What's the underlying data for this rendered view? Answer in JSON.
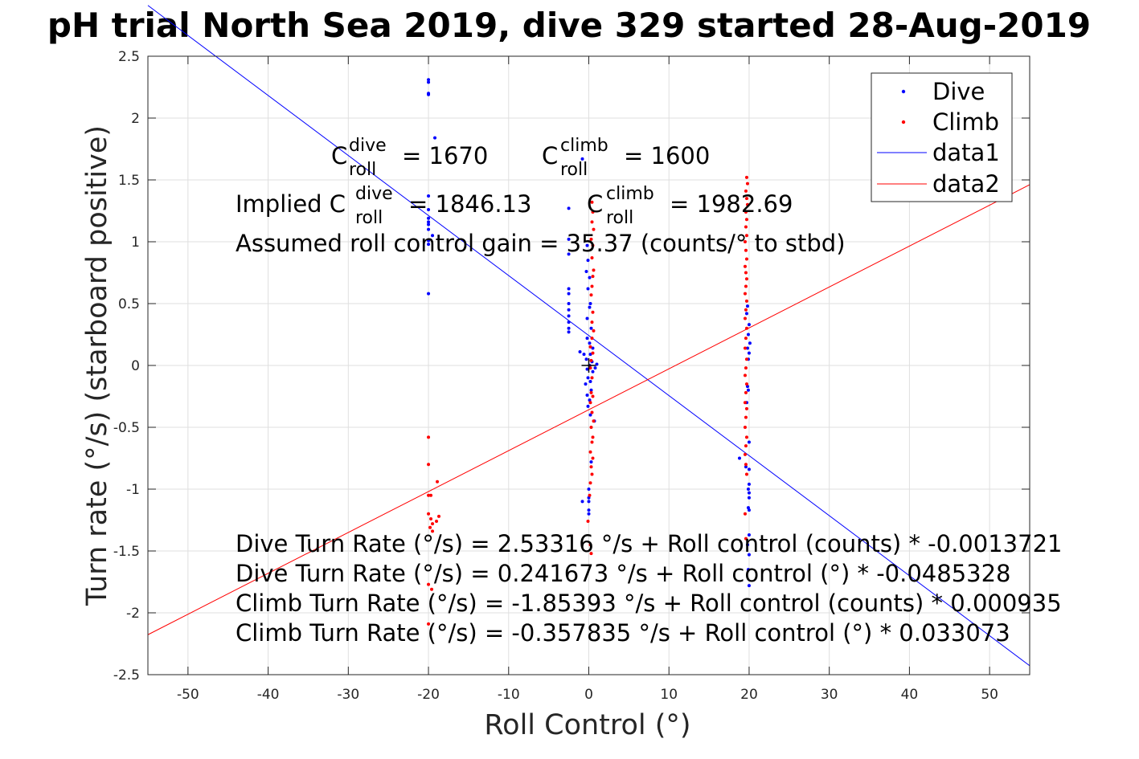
{
  "chart_data": {
    "type": "scatter",
    "title": "pH trial North Sea 2019, dive 329 started 28-Aug-2019",
    "xlabel": "Roll Control (°)",
    "ylabel": "Turn rate (°/s) (starboard positive)",
    "xlim": [
      -55,
      55
    ],
    "ylim": [
      -2.5,
      2.5
    ],
    "xticks": [
      -50,
      -40,
      -30,
      -20,
      -10,
      0,
      10,
      20,
      30,
      40,
      50
    ],
    "yticks": [
      -2.5,
      -2,
      -1.5,
      -1,
      -0.5,
      0,
      0.5,
      1,
      1.5,
      2,
      2.5
    ],
    "grid": true,
    "legend_position": "top-right",
    "series": [
      {
        "name": "Dive",
        "kind": "points",
        "color": "#0000ff",
        "points": [
          [
            -20,
            2.31
          ],
          [
            -20,
            2.29
          ],
          [
            -20,
            2.2
          ],
          [
            -20,
            2.19
          ],
          [
            -19.2,
            1.84
          ],
          [
            -20,
            1.37
          ],
          [
            -20,
            1.26
          ],
          [
            -20,
            1.19
          ],
          [
            -20,
            1.16
          ],
          [
            -20,
            1.14
          ],
          [
            -20,
            1.1
          ],
          [
            -19.5,
            1.05
          ],
          [
            -20,
            1.01
          ],
          [
            -20,
            0.98
          ],
          [
            -20,
            0.58
          ],
          [
            -0.8,
            1.67
          ],
          [
            -2.5,
            1.27
          ],
          [
            -2.5,
            1.02
          ],
          [
            -2.5,
            0.9
          ],
          [
            -2.5,
            0.62
          ],
          [
            -2.5,
            0.58
          ],
          [
            -2.5,
            0.5
          ],
          [
            -2.5,
            0.45
          ],
          [
            -2.5,
            0.4
          ],
          [
            -2.5,
            0.35
          ],
          [
            -2.5,
            0.3
          ],
          [
            -2.5,
            0.27
          ],
          [
            -0.2,
            0.97
          ],
          [
            -0.1,
            0.85
          ],
          [
            -0.3,
            0.76
          ],
          [
            0.1,
            0.71
          ],
          [
            -0.1,
            0.62
          ],
          [
            0.2,
            0.5
          ],
          [
            0.1,
            0.47
          ],
          [
            -0.2,
            0.38
          ],
          [
            0.3,
            0.3
          ],
          [
            -0.2,
            0.22
          ],
          [
            0.1,
            0.18
          ],
          [
            0.5,
            0.14
          ],
          [
            0.2,
            0.09
          ],
          [
            -0.3,
            0.05
          ],
          [
            0.4,
            0.03
          ],
          [
            0.1,
            0
          ],
          [
            -0.2,
            -0.03
          ],
          [
            0.5,
            -0.05
          ],
          [
            -0.1,
            -0.1
          ],
          [
            0.2,
            -0.13
          ],
          [
            -1.1,
            0.11
          ],
          [
            -0.6,
            0.09
          ],
          [
            -0.4,
            -0.15
          ],
          [
            0.3,
            -0.2
          ],
          [
            -0.2,
            -0.24
          ],
          [
            0.1,
            -0.28
          ],
          [
            -0.1,
            -0.33
          ],
          [
            0.2,
            -0.4
          ],
          [
            0.7,
            -0.45
          ],
          [
            1,
            0.01
          ],
          [
            0.8,
            -0.02
          ],
          [
            -0.8,
            -1.1
          ],
          [
            0,
            -1.1
          ],
          [
            0,
            -1.17
          ],
          [
            0,
            -1.2
          ],
          [
            0,
            -1.07
          ],
          [
            0,
            -1.0
          ],
          [
            0.3,
            -0.78
          ],
          [
            19.8,
            0.48
          ],
          [
            19.7,
            0.42
          ],
          [
            20,
            0.33
          ],
          [
            19.9,
            0.25
          ],
          [
            20.1,
            0.18
          ],
          [
            19.8,
            0.14
          ],
          [
            20,
            0.1
          ],
          [
            19.9,
            0.05
          ],
          [
            19.8,
            -0.17
          ],
          [
            19.9,
            -0.2
          ],
          [
            19.7,
            -0.3
          ],
          [
            20,
            -0.62
          ],
          [
            18.8,
            -0.75
          ],
          [
            19.6,
            -0.82
          ],
          [
            20,
            -0.84
          ],
          [
            20,
            -0.96
          ],
          [
            19.9,
            -1.0
          ],
          [
            20,
            -1.03
          ],
          [
            20,
            -1.07
          ],
          [
            19.9,
            -1.15
          ],
          [
            20,
            -1.17
          ],
          [
            20,
            -1.37
          ],
          [
            19.8,
            -1.45
          ],
          [
            20,
            -1.53
          ],
          [
            19.9,
            -1.65
          ],
          [
            20,
            -1.78
          ]
        ]
      },
      {
        "name": "Climb",
        "kind": "points",
        "color": "#ff0000",
        "points": [
          [
            -20,
            -0.58
          ],
          [
            -20,
            -0.8
          ],
          [
            -19.7,
            -1.05
          ],
          [
            -20,
            -1.05
          ],
          [
            -18.9,
            -0.94
          ],
          [
            -20,
            -1.2
          ],
          [
            -19.7,
            -1.24
          ],
          [
            -19.5,
            -1.28
          ],
          [
            -19.8,
            -1.31
          ],
          [
            -19.5,
            -1.34
          ],
          [
            -18.7,
            -1.22
          ],
          [
            -19,
            -1.26
          ],
          [
            -20,
            -1.77
          ],
          [
            -19.6,
            -1.81
          ],
          [
            -20,
            -2.09
          ],
          [
            0.4,
            1.32
          ],
          [
            0.5,
            1.24
          ],
          [
            0.4,
            1.16
          ],
          [
            0.6,
            1.1
          ],
          [
            0.3,
            1.02
          ],
          [
            0.5,
            0.97
          ],
          [
            0.4,
            0.87
          ],
          [
            0.6,
            0.77
          ],
          [
            0.5,
            0.72
          ],
          [
            0.4,
            0.64
          ],
          [
            0.3,
            0.57
          ],
          [
            0.5,
            0.43
          ],
          [
            0.4,
            0.35
          ],
          [
            0.6,
            0.28
          ],
          [
            0.4,
            0.22
          ],
          [
            0.2,
            0.15
          ],
          [
            0.5,
            0.1
          ],
          [
            0.3,
            0.04
          ],
          [
            0.2,
            -0.02
          ],
          [
            0.4,
            -0.1
          ],
          [
            0.3,
            -0.22
          ],
          [
            0.5,
            -0.25
          ],
          [
            0.2,
            -0.3
          ],
          [
            0.4,
            -0.38
          ],
          [
            0.6,
            -0.45
          ],
          [
            0.3,
            -0.5
          ],
          [
            0.5,
            -0.58
          ],
          [
            0.4,
            -0.62
          ],
          [
            0.2,
            -0.7
          ],
          [
            0.5,
            -0.75
          ],
          [
            0.3,
            -0.82
          ],
          [
            0.4,
            -0.88
          ],
          [
            0.2,
            -0.95
          ],
          [
            0.1,
            -1.05
          ],
          [
            -0.1,
            -1.26
          ],
          [
            0.2,
            -1.45
          ],
          [
            0.3,
            -1.52
          ],
          [
            19.7,
            1.52
          ],
          [
            19.8,
            1.47
          ],
          [
            19.6,
            1.41
          ],
          [
            19.7,
            1.35
          ],
          [
            19.8,
            1.3
          ],
          [
            19.6,
            1.24
          ],
          [
            19.7,
            1.18
          ],
          [
            19.6,
            1.12
          ],
          [
            19.7,
            1.05
          ],
          [
            19.5,
            1.0
          ],
          [
            19.6,
            0.93
          ],
          [
            19.7,
            0.86
          ],
          [
            19.5,
            0.8
          ],
          [
            19.6,
            0.75
          ],
          [
            19.7,
            0.7
          ],
          [
            19.6,
            0.64
          ],
          [
            19.5,
            0.58
          ],
          [
            19.7,
            0.52
          ],
          [
            19.6,
            0.45
          ],
          [
            19.5,
            0.38
          ],
          [
            19.7,
            0.3
          ],
          [
            19.6,
            0.22
          ],
          [
            19.5,
            0.14
          ],
          [
            19.7,
            0.05
          ],
          [
            19.6,
            -0.02
          ],
          [
            19.5,
            -0.08
          ],
          [
            19.7,
            -0.15
          ],
          [
            19.6,
            -0.22
          ],
          [
            19.5,
            -0.3
          ],
          [
            19.7,
            -0.35
          ],
          [
            19.6,
            -0.42
          ],
          [
            19.5,
            -0.5
          ],
          [
            19.7,
            -0.58
          ],
          [
            19.6,
            -0.65
          ],
          [
            19.5,
            -0.72
          ],
          [
            19.6,
            -0.8
          ],
          [
            19.7,
            -0.88
          ],
          [
            19.5,
            -1.2
          ],
          [
            19.6,
            -1.4
          ]
        ]
      },
      {
        "name": "data1",
        "kind": "line",
        "color": "#0000ff",
        "points": [
          [
            -55,
            2.9106
          ],
          [
            55,
            -2.4277
          ]
        ]
      },
      {
        "name": "data2",
        "kind": "line",
        "color": "#ff0000",
        "points": [
          [
            -55,
            -2.1769
          ],
          [
            55,
            1.4611
          ]
        ]
      },
      {
        "name": "",
        "kind": "marker",
        "marker": "+",
        "color": "#000000",
        "points": [
          [
            0,
            0
          ]
        ]
      }
    ],
    "annotations": {
      "c_dive": {
        "base": "C",
        "sup": "dive",
        "sub": "roll",
        "rest": "= 1670"
      },
      "c_climb": {
        "base": "C",
        "sup": "climb",
        "sub": "roll",
        "rest": "= 1600"
      },
      "implied_prefix": "Implied C",
      "implied_dive": {
        "sup": "dive",
        "sub": "roll",
        "rest": "= 1846.13"
      },
      "implied_climb": {
        "base": "C",
        "sup": "climb",
        "sub": "roll",
        "rest": "= 1982.69"
      },
      "gain": "Assumed roll control gain = 35.37 (counts/° to stbd)",
      "eq_lines": [
        "Dive Turn Rate (°/s) = 2.53316 °/s + Roll control (counts) * -0.0013721",
        "Dive Turn Rate (°/s) = 0.241673 °/s + Roll control (°) * -0.0485328",
        "Climb Turn Rate (°/s) = -1.85393 °/s + Roll control (counts) * 0.000935",
        "Climb Turn Rate (°/s) = -0.357835 °/s + Roll control (°) * 0.033073"
      ]
    }
  }
}
